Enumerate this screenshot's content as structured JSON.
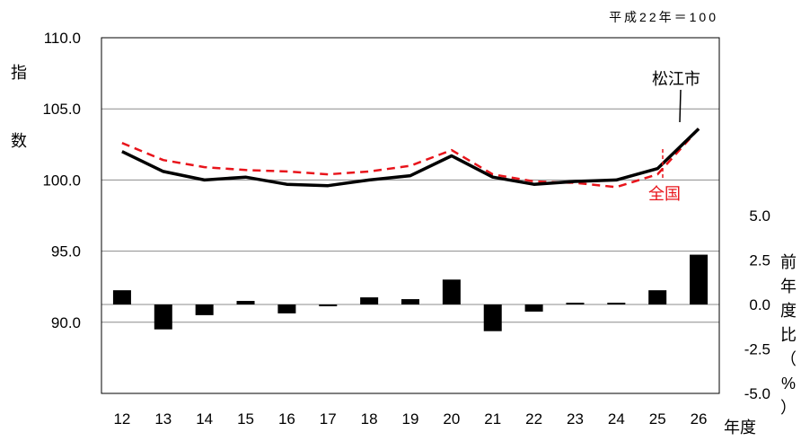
{
  "chart_data": {
    "type": "line",
    "note": "平成22年＝100",
    "categories": [
      "12",
      "13",
      "14",
      "15",
      "16",
      "17",
      "18",
      "19",
      "20",
      "21",
      "22",
      "23",
      "24",
      "25",
      "26"
    ],
    "xlabel": "年度",
    "ylabel_left_chars": [
      "指",
      "数"
    ],
    "ylabel_right_chars": [
      "前",
      "年",
      "度",
      "比",
      "（",
      "%",
      "）"
    ],
    "y_left": {
      "range": [
        85,
        110
      ],
      "ticks": [
        "110.0",
        "105.0",
        "100.0",
        "95.0",
        "90.0"
      ],
      "tick_values": [
        110,
        105,
        100,
        95,
        90
      ]
    },
    "y_right": {
      "range": [
        -5,
        15
      ],
      "ticks": [
        "5.0",
        "2.5",
        "0.0",
        "-2.5",
        "-5.0"
      ],
      "tick_values": [
        5,
        2.5,
        0,
        -2.5,
        -5
      ]
    },
    "grid": true,
    "series": [
      {
        "name": "松江市",
        "kind": "line",
        "axis": "left",
        "color": "#000000",
        "style": "solid",
        "values": [
          102.0,
          100.6,
          100.0,
          100.2,
          99.7,
          99.6,
          100.0,
          100.3,
          101.7,
          100.2,
          99.7,
          99.9,
          100.0,
          100.8,
          103.6
        ]
      },
      {
        "name": "全国",
        "kind": "line",
        "axis": "left",
        "color": "#e8141b",
        "style": "dashed",
        "values": [
          102.6,
          101.4,
          100.9,
          100.7,
          100.6,
          100.4,
          100.6,
          101.0,
          102.1,
          100.4,
          99.9,
          99.8,
          99.5,
          100.4,
          103.6
        ]
      },
      {
        "name": "前年度比",
        "kind": "bar",
        "axis": "right",
        "color": "#000000",
        "values": [
          0.8,
          -1.4,
          -0.6,
          0.2,
          -0.5,
          -0.1,
          0.4,
          0.3,
          1.4,
          -1.5,
          -0.4,
          0.1,
          0.1,
          0.8,
          2.8
        ]
      }
    ],
    "annotations": [
      {
        "text": "松江市",
        "color": "#000000",
        "points_to": "26"
      },
      {
        "text": "全国",
        "color": "#e8141b",
        "points_to": "25"
      }
    ]
  }
}
